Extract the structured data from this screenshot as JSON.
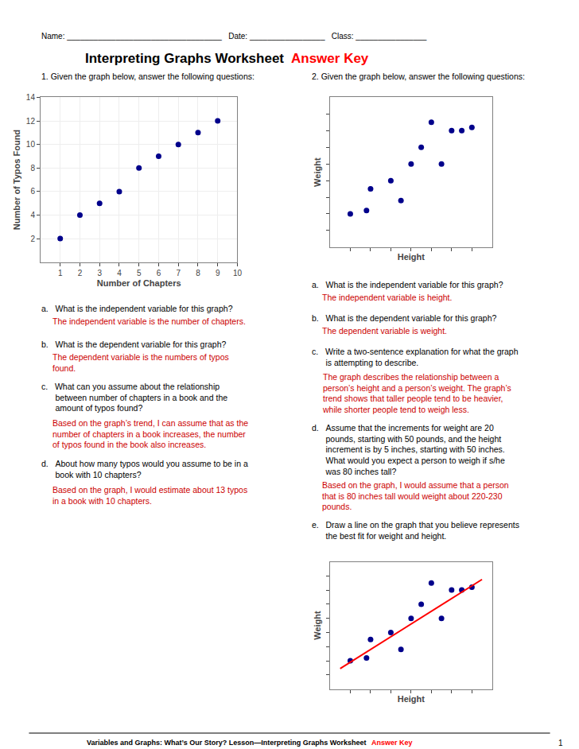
{
  "chart_data": [
    {
      "type": "scatter",
      "x": [
        1,
        2,
        3,
        4,
        5,
        6,
        7,
        8,
        9
      ],
      "values": [
        2,
        4,
        5,
        6,
        8,
        9,
        10,
        11,
        12
      ],
      "color": "#00008B",
      "xlabel": "Number of Chapters",
      "ylabel": "Number of Typos Found",
      "xlim": [
        0,
        10
      ],
      "ylim": [
        0,
        14
      ],
      "xticks": [
        1,
        2,
        3,
        4,
        5,
        6,
        7,
        8,
        9,
        10
      ],
      "yticks": [
        2,
        4,
        6,
        8,
        10,
        12,
        14
      ],
      "grid": true,
      "annotations": [
        {
          "text": "Name: ___________________________________   Date: _________________   Class: ________________"
        },
        {
          "text": "Interpreting Graphs Worksheet "
        },
        {
          "text": "Answer Key",
          "color": "red"
        },
        {
          "text": "1. Given the graph below, answer the following questions:"
        },
        {
          "text": "a.   What is the independent variable for this graph?"
        },
        {
          "text": "The independent variable is the number of chapters.",
          "color": "#CC0000"
        },
        {
          "text": "b.   What is the dependent variable for this graph?"
        },
        {
          "text": "The dependent variable is the numbers of typos\nfound.",
          "color": "#CC0000"
        },
        {
          "text": "c.   What can you assume about the relationship\n      between number of chapters in a book and the\n      amount of typos found?"
        },
        {
          "text": "Based on the graph’s trend, I can assume that as the\nnumber of chapters in a book increases, the number\nof typos found in the book also increases.",
          "color": "#CC0000"
        },
        {
          "text": "d.   About how many typos would you assume to be in a\n      book with 10 chapters?"
        },
        {
          "text": "Based on the graph, I would estimate about 13 typos\nin a book with 10 chapters.",
          "color": "#CC0000"
        },
        {
          "text": "Variables and Graphs: What’s Our Story? Lesson—Interpreting Graphs Worksheet "
        },
        {
          "text": "Answer Key",
          "color": "red"
        },
        {
          "text": "1"
        }
      ]
    },
    {
      "type": "scatter",
      "x": [
        1,
        1.8,
        2,
        3,
        3.5,
        4,
        4.5,
        5,
        5.5,
        6,
        6.5,
        7
      ],
      "values": [
        2,
        2.2,
        3.5,
        4,
        2.8,
        5,
        6,
        7.5,
        5,
        7,
        7,
        7.2
      ],
      "color": "#00008B",
      "xlabel": "Height",
      "ylabel": "Weight",
      "xlim": [
        0,
        8
      ],
      "ylim": [
        0,
        9
      ],
      "xticks": [
        1,
        2,
        3,
        4,
        5,
        6,
        7
      ],
      "yticks": [
        1,
        2,
        3,
        4,
        5,
        6,
        7,
        8
      ],
      "grid": false,
      "tick_labels": false,
      "annotations": [
        {
          "text": "2. Given the graph below, answer the following questions:"
        },
        {
          "text": "a.   What is the independent variable for this graph?"
        },
        {
          "text": "The independent variable is height.",
          "color": "#CC0000"
        },
        {
          "text": "b.   What is the dependent variable for this graph?"
        },
        {
          "text": "The dependent variable is weight.",
          "color": "#CC0000"
        },
        {
          "text": "c.   Write a two-sentence explanation for what the graph\n      is attempting to describe."
        },
        {
          "text": "The graph describes the relationship between a\nperson’s height and a person’s weight. The graph’s\ntrend shows that taller people tend to be heavier,\nwhile shorter people tend to weigh less.",
          "color": "#CC0000"
        },
        {
          "text": "d.   Assume that the increments for weight are 20\n      pounds, starting with 50 pounds, and the height\n      increment is by 5 inches, starting with 50 inches.\n      What would you expect a person to weigh if s/he\n      was 80 inches tall?"
        },
        {
          "text": "Based on the graph, I would assume that a person\nthat is 80 inches tall would weight about 220-230\npounds.",
          "color": "#CC0000"
        },
        {
          "text": "e.   Draw a line on the graph that you believe represents\n      the best fit for weight and height."
        }
      ]
    },
    {
      "type": "scatter",
      "series": [
        {
          "type": "scatter",
          "color": "#00008B",
          "x": [
            1,
            1.8,
            2,
            3,
            3.5,
            4,
            4.5,
            5,
            5.5,
            6,
            6.5,
            7
          ],
          "values": [
            2,
            2.2,
            3.5,
            4,
            2.8,
            5,
            6,
            7.5,
            5,
            7,
            7,
            7.2
          ]
        },
        {
          "type": "line",
          "color": "red",
          "x": [
            0.5,
            7.5
          ],
          "values": [
            1.45,
            7.75
          ]
        }
      ],
      "xlabel": "Height",
      "ylabel": "Weight",
      "xlim": [
        0,
        8
      ],
      "ylim": [
        0,
        9
      ],
      "xticks": [
        1,
        2,
        3,
        4,
        5,
        6,
        7
      ],
      "yticks": [
        1,
        2,
        3,
        4,
        5,
        6,
        7,
        8
      ],
      "grid": false,
      "tick_labels": false
    }
  ]
}
